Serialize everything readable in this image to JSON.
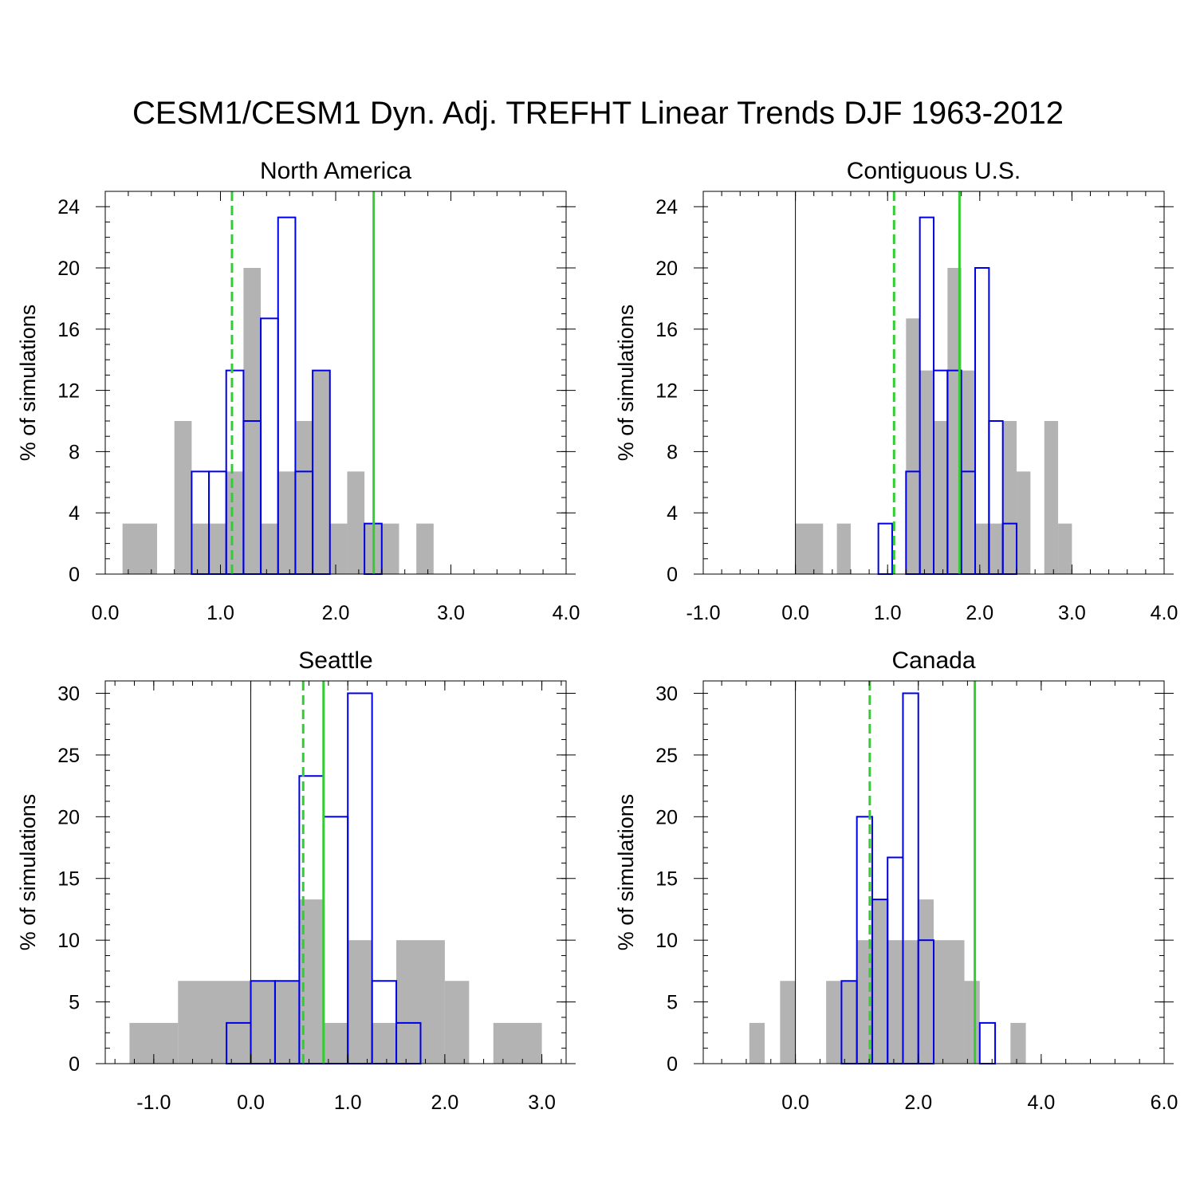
{
  "title": "CESM1/CESM1 Dyn. Adj. TREFHT Linear Trends DJF 1963-2012",
  "colors": {
    "cesm1_fill": "#b3b3b3",
    "dyn_adj_outline": "#0000e6",
    "obs_line": "#33cc33",
    "zero_line": "#000000"
  },
  "chart_data": [
    {
      "type": "bar",
      "title": "North America",
      "ylabel": "% of simulations",
      "xlim": [
        0,
        4
      ],
      "ylim": [
        0,
        25
      ],
      "xticks": [
        0,
        1,
        2,
        3,
        4
      ],
      "xtick_labels": [
        "0.0",
        "1.0",
        "2.0",
        "3.0",
        "4.0"
      ],
      "yticks": [
        0,
        4,
        8,
        12,
        16,
        20,
        24
      ],
      "ytick_labels": [
        "0",
        "4",
        "8",
        "12",
        "16",
        "20",
        "24"
      ],
      "zero_line": false,
      "cesm1_histogram": [
        {
          "x0": 0.15,
          "x1": 0.45,
          "value": 3.3
        },
        {
          "x0": 0.6,
          "x1": 0.75,
          "value": 10.0
        },
        {
          "x0": 0.75,
          "x1": 1.2,
          "value": 3.3
        },
        {
          "x0": 1.05,
          "x1": 1.2,
          "value": 6.7
        },
        {
          "x0": 1.2,
          "x1": 1.35,
          "value": 20.0
        },
        {
          "x0": 1.35,
          "x1": 1.5,
          "value": 3.3
        },
        {
          "x0": 1.5,
          "x1": 1.65,
          "value": 6.7
        },
        {
          "x0": 1.65,
          "x1": 1.8,
          "value": 10.0
        },
        {
          "x0": 1.8,
          "x1": 1.95,
          "value": 13.3
        },
        {
          "x0": 1.95,
          "x1": 2.1,
          "value": 3.3
        },
        {
          "x0": 2.1,
          "x1": 2.25,
          "value": 6.7
        },
        {
          "x0": 2.25,
          "x1": 2.55,
          "value": 3.3
        },
        {
          "x0": 2.7,
          "x1": 2.85,
          "value": 3.3
        }
      ],
      "dyn_adj_histogram": [
        {
          "x0": 0.75,
          "x1": 0.9,
          "value": 6.7
        },
        {
          "x0": 0.9,
          "x1": 1.05,
          "value": 6.7
        },
        {
          "x0": 1.05,
          "x1": 1.2,
          "value": 13.3
        },
        {
          "x0": 1.2,
          "x1": 1.35,
          "value": 10.0
        },
        {
          "x0": 1.35,
          "x1": 1.5,
          "value": 16.7
        },
        {
          "x0": 1.5,
          "x1": 1.65,
          "value": 23.3
        },
        {
          "x0": 1.65,
          "x1": 1.8,
          "value": 6.7
        },
        {
          "x0": 1.8,
          "x1": 1.95,
          "value": 13.3
        },
        {
          "x0": 2.25,
          "x1": 2.4,
          "value": 3.3
        }
      ],
      "obs_lines": [
        {
          "x": 1.1,
          "style": "dashed"
        },
        {
          "x": 2.33,
          "style": "solid"
        }
      ]
    },
    {
      "type": "bar",
      "title": "Contiguous U.S.",
      "ylabel": "% of simulations",
      "xlim": [
        -1,
        4
      ],
      "ylim": [
        0,
        25
      ],
      "xticks": [
        -1,
        0,
        1,
        2,
        3,
        4
      ],
      "xtick_labels": [
        "-1.0",
        "0.0",
        "1.0",
        "2.0",
        "3.0",
        "4.0"
      ],
      "yticks": [
        0,
        4,
        8,
        12,
        16,
        20,
        24
      ],
      "ytick_labels": [
        "0",
        "4",
        "8",
        "12",
        "16",
        "20",
        "24"
      ],
      "zero_line": true,
      "cesm1_histogram": [
        {
          "x0": 0.0,
          "x1": 0.3,
          "value": 3.3
        },
        {
          "x0": 0.45,
          "x1": 0.6,
          "value": 3.3
        },
        {
          "x0": 1.2,
          "x1": 1.35,
          "value": 16.7
        },
        {
          "x0": 1.35,
          "x1": 1.5,
          "value": 13.3
        },
        {
          "x0": 1.5,
          "x1": 1.65,
          "value": 10.0
        },
        {
          "x0": 1.65,
          "x1": 1.8,
          "value": 20.0
        },
        {
          "x0": 1.8,
          "x1": 1.95,
          "value": 13.3
        },
        {
          "x0": 1.95,
          "x1": 2.25,
          "value": 3.3
        },
        {
          "x0": 2.25,
          "x1": 2.4,
          "value": 10.0
        },
        {
          "x0": 2.4,
          "x1": 2.55,
          "value": 6.7
        },
        {
          "x0": 2.7,
          "x1": 2.85,
          "value": 10.0
        },
        {
          "x0": 2.85,
          "x1": 3.0,
          "value": 3.3
        }
      ],
      "dyn_adj_histogram": [
        {
          "x0": 0.9,
          "x1": 1.05,
          "value": 3.3
        },
        {
          "x0": 1.2,
          "x1": 1.35,
          "value": 6.7
        },
        {
          "x0": 1.35,
          "x1": 1.5,
          "value": 23.3
        },
        {
          "x0": 1.5,
          "x1": 1.65,
          "value": 13.3
        },
        {
          "x0": 1.65,
          "x1": 1.8,
          "value": 13.3
        },
        {
          "x0": 1.8,
          "x1": 1.95,
          "value": 6.7
        },
        {
          "x0": 1.95,
          "x1": 2.1,
          "value": 20.0
        },
        {
          "x0": 2.1,
          "x1": 2.25,
          "value": 10.0
        },
        {
          "x0": 2.25,
          "x1": 2.4,
          "value": 3.3
        }
      ],
      "obs_lines": [
        {
          "x": 1.07,
          "style": "dashed"
        },
        {
          "x": 1.78,
          "style": "solid"
        }
      ]
    },
    {
      "type": "bar",
      "title": "Seattle",
      "ylabel": "% of simulations",
      "xlim": [
        -1.5,
        3.25
      ],
      "ylim": [
        0,
        31
      ],
      "xticks": [
        -1,
        0,
        1,
        2,
        3
      ],
      "xtick_labels": [
        "-1.0",
        "0.0",
        "1.0",
        "2.0",
        "3.0"
      ],
      "yticks": [
        0,
        5,
        10,
        15,
        20,
        25,
        30
      ],
      "ytick_labels": [
        "0",
        "5",
        "10",
        "15",
        "20",
        "25",
        "30"
      ],
      "zero_line": true,
      "cesm1_histogram": [
        {
          "x0": -1.25,
          "x1": -0.75,
          "value": 3.3
        },
        {
          "x0": -0.75,
          "x1": 0.5,
          "value": 6.7
        },
        {
          "x0": 0.5,
          "x1": 0.75,
          "value": 13.3
        },
        {
          "x0": 0.75,
          "x1": 1.0,
          "value": 3.3
        },
        {
          "x0": 1.0,
          "x1": 1.25,
          "value": 10.0
        },
        {
          "x0": 1.25,
          "x1": 1.5,
          "value": 3.3
        },
        {
          "x0": 1.5,
          "x1": 2.0,
          "value": 10.0
        },
        {
          "x0": 2.0,
          "x1": 2.25,
          "value": 6.7
        },
        {
          "x0": 2.5,
          "x1": 3.0,
          "value": 3.3
        }
      ],
      "dyn_adj_histogram": [
        {
          "x0": -0.25,
          "x1": 0.0,
          "value": 3.3
        },
        {
          "x0": 0.0,
          "x1": 0.25,
          "value": 6.7
        },
        {
          "x0": 0.25,
          "x1": 0.5,
          "value": 6.7
        },
        {
          "x0": 0.5,
          "x1": 0.75,
          "value": 23.3
        },
        {
          "x0": 0.75,
          "x1": 1.0,
          "value": 20.0
        },
        {
          "x0": 1.0,
          "x1": 1.25,
          "value": 30.0
        },
        {
          "x0": 1.25,
          "x1": 1.5,
          "value": 6.7
        },
        {
          "x0": 1.5,
          "x1": 1.75,
          "value": 3.3
        }
      ],
      "obs_lines": [
        {
          "x": 0.54,
          "style": "dashed"
        },
        {
          "x": 0.75,
          "style": "solid"
        }
      ]
    },
    {
      "type": "bar",
      "title": "Canada",
      "ylabel": "% of simulations",
      "xlim": [
        -1.5,
        6
      ],
      "ylim": [
        0,
        31
      ],
      "xticks": [
        0,
        2,
        4,
        6
      ],
      "xtick_labels": [
        "0.0",
        "2.0",
        "4.0",
        "6.0"
      ],
      "yticks": [
        0,
        5,
        10,
        15,
        20,
        25,
        30
      ],
      "ytick_labels": [
        "0",
        "5",
        "10",
        "15",
        "20",
        "25",
        "30"
      ],
      "zero_line": true,
      "cesm1_histogram": [
        {
          "x0": -0.75,
          "x1": -0.5,
          "value": 3.3
        },
        {
          "x0": -0.25,
          "x1": 0.0,
          "value": 6.7
        },
        {
          "x0": 0.5,
          "x1": 1.0,
          "value": 6.7
        },
        {
          "x0": 1.0,
          "x1": 1.25,
          "value": 10.0
        },
        {
          "x0": 1.25,
          "x1": 1.5,
          "value": 13.3
        },
        {
          "x0": 1.5,
          "x1": 2.0,
          "value": 10.0
        },
        {
          "x0": 2.0,
          "x1": 2.25,
          "value": 13.3
        },
        {
          "x0": 2.25,
          "x1": 2.75,
          "value": 10.0
        },
        {
          "x0": 2.75,
          "x1": 3.0,
          "value": 6.7
        },
        {
          "x0": 3.5,
          "x1": 3.75,
          "value": 3.3
        }
      ],
      "dyn_adj_histogram": [
        {
          "x0": 0.75,
          "x1": 1.0,
          "value": 6.7
        },
        {
          "x0": 1.0,
          "x1": 1.25,
          "value": 20.0
        },
        {
          "x0": 1.25,
          "x1": 1.5,
          "value": 13.3
        },
        {
          "x0": 1.5,
          "x1": 1.75,
          "value": 16.7
        },
        {
          "x0": 1.75,
          "x1": 2.0,
          "value": 30.0
        },
        {
          "x0": 2.0,
          "x1": 2.25,
          "value": 10.0
        },
        {
          "x0": 3.0,
          "x1": 3.25,
          "value": 3.3
        }
      ],
      "obs_lines": [
        {
          "x": 1.21,
          "style": "dashed"
        },
        {
          "x": 2.92,
          "style": "solid"
        }
      ]
    }
  ]
}
